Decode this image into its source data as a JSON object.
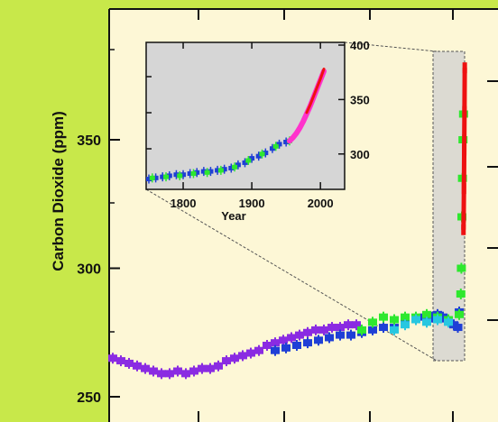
{
  "colors": {
    "frame": "#c8e84a",
    "panel": "#fdf7d6",
    "inset_bg": "#d6d6d6",
    "zoom_box": "#d0d0d0",
    "purple": "#8a2be2",
    "blue": "#1f3fd6",
    "green": "#2ee82e",
    "cyan": "#27c7e0",
    "magenta": "#ff33cc",
    "red": "#ee1111"
  },
  "chart_data": [
    {
      "type": "scatter",
      "title": "",
      "ylabel": "Carbon Dioxide (ppm)",
      "xlabel": "",
      "ylim": [
        245,
        395
      ],
      "yticks": [
        250,
        300,
        350
      ],
      "xlim": [
        -11000,
        2500
      ],
      "grid": false,
      "series": [
        {
          "color": "purple",
          "x": [
            -11000,
            -10700,
            -10400,
            -10100,
            -9800,
            -9500,
            -9200,
            -8900,
            -8600,
            -8300,
            -8000,
            -7700,
            -7400,
            -7100,
            -6800,
            -6500,
            -6200,
            -5900,
            -5600,
            -5300,
            -5000,
            -4700,
            -4400,
            -4100,
            -3800,
            -3500,
            -3200,
            -2900,
            -2600,
            -2300,
            -2000
          ],
          "y": [
            265,
            264,
            263,
            262,
            261,
            260,
            259,
            259,
            260,
            259,
            260,
            261,
            261,
            262,
            264,
            265,
            266,
            267,
            268,
            270,
            271,
            272,
            273,
            274,
            275,
            276,
            276,
            277,
            277,
            278,
            278
          ]
        },
        {
          "color": "blue",
          "x": [
            -5000,
            -4600,
            -4200,
            -3800,
            -3400,
            -3000,
            -2600,
            -2200,
            -1800,
            -1400,
            -1000,
            -600,
            -200,
            200,
            500,
            800,
            1000,
            1200,
            1400,
            1600,
            1750,
            1800
          ],
          "y": [
            268,
            269,
            270,
            271,
            272,
            273,
            274,
            274,
            275,
            276,
            277,
            277,
            279,
            280,
            281,
            281,
            282,
            281,
            280,
            278,
            277,
            283
          ]
        },
        {
          "color": "green",
          "x": [
            -1800,
            -1400,
            -1000,
            -600,
            -200,
            200,
            600,
            1000,
            1400,
            1800,
            1860,
            1880,
            1900,
            1920,
            1940,
            1960
          ],
          "y": [
            276,
            279,
            281,
            280,
            281,
            281,
            282,
            281,
            280,
            282,
            290,
            300,
            320,
            335,
            350,
            360
          ]
        },
        {
          "color": "cyan",
          "x": [
            -600,
            -200,
            200,
            600,
            1000,
            1400
          ],
          "y": [
            276,
            278,
            280,
            279,
            280,
            279
          ]
        },
        {
          "color": "red",
          "x": [
            1958,
            1965,
            1975,
            1985,
            1995,
            2005
          ],
          "y": [
            315,
            320,
            331,
            346,
            361,
            378
          ]
        }
      ]
    },
    {
      "type": "scatter",
      "title": "",
      "xlabel": "Year",
      "ylabel": "",
      "xlim": [
        1750,
        2030
      ],
      "ylim": [
        270,
        400
      ],
      "xticks": [
        1800,
        1900,
        2000
      ],
      "yticks": [
        300,
        350,
        400
      ],
      "grid": false,
      "series": [
        {
          "color": "blue",
          "x": [
            1750,
            1760,
            1770,
            1780,
            1790,
            1800,
            1810,
            1820,
            1830,
            1840,
            1850,
            1860,
            1870,
            1880,
            1890,
            1900,
            1910,
            1920,
            1930,
            1940,
            1950
          ],
          "y": [
            277,
            278,
            279,
            280,
            281,
            281,
            282,
            283,
            284,
            284,
            285,
            286,
            287,
            290,
            292,
            296,
            298,
            301,
            305,
            309,
            311
          ]
        },
        {
          "color": "green",
          "x": [
            1755,
            1775,
            1795,
            1815,
            1835,
            1855,
            1875,
            1895,
            1915,
            1935,
            1955
          ],
          "y": [
            278,
            279,
            280,
            282,
            283,
            285,
            288,
            294,
            300,
            307,
            312
          ]
        },
        {
          "color": "magenta",
          "x": [
            1955,
            1960,
            1965,
            1970,
            1975,
            1980,
            1985,
            1990,
            1995,
            2000,
            2005
          ],
          "y": [
            312,
            315,
            319,
            324,
            330,
            337,
            344,
            352,
            360,
            368,
            376
          ]
        },
        {
          "color": "red",
          "x": [
            1980,
            1985,
            1990,
            1995,
            2000,
            2005
          ],
          "y": [
            338,
            345,
            353,
            361,
            369,
            378
          ]
        }
      ]
    }
  ]
}
